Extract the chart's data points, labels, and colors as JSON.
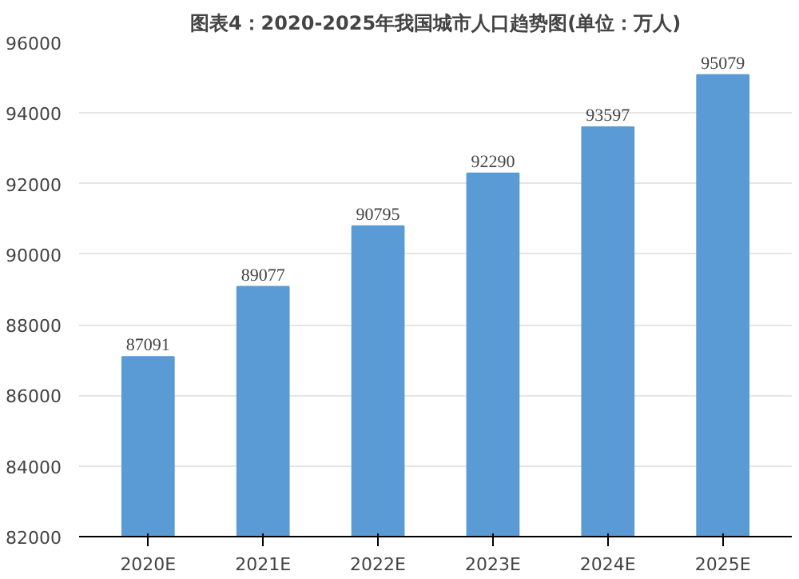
{
  "chart_data": {
    "type": "bar",
    "title": "图表4：2020-2025年我国城市人口趋势图(单位：万人)",
    "categories": [
      "2020E",
      "2021E",
      "2022E",
      "2023E",
      "2024E",
      "2025E"
    ],
    "values": [
      87091,
      89077,
      90795,
      92290,
      93597,
      95079
    ],
    "color": "#5b9bd5",
    "ylim": [
      82000,
      96000
    ],
    "yticks": [
      82000,
      84000,
      86000,
      88000,
      90000,
      92000,
      94000,
      96000
    ],
    "grid": "y",
    "data_labels": true
  }
}
